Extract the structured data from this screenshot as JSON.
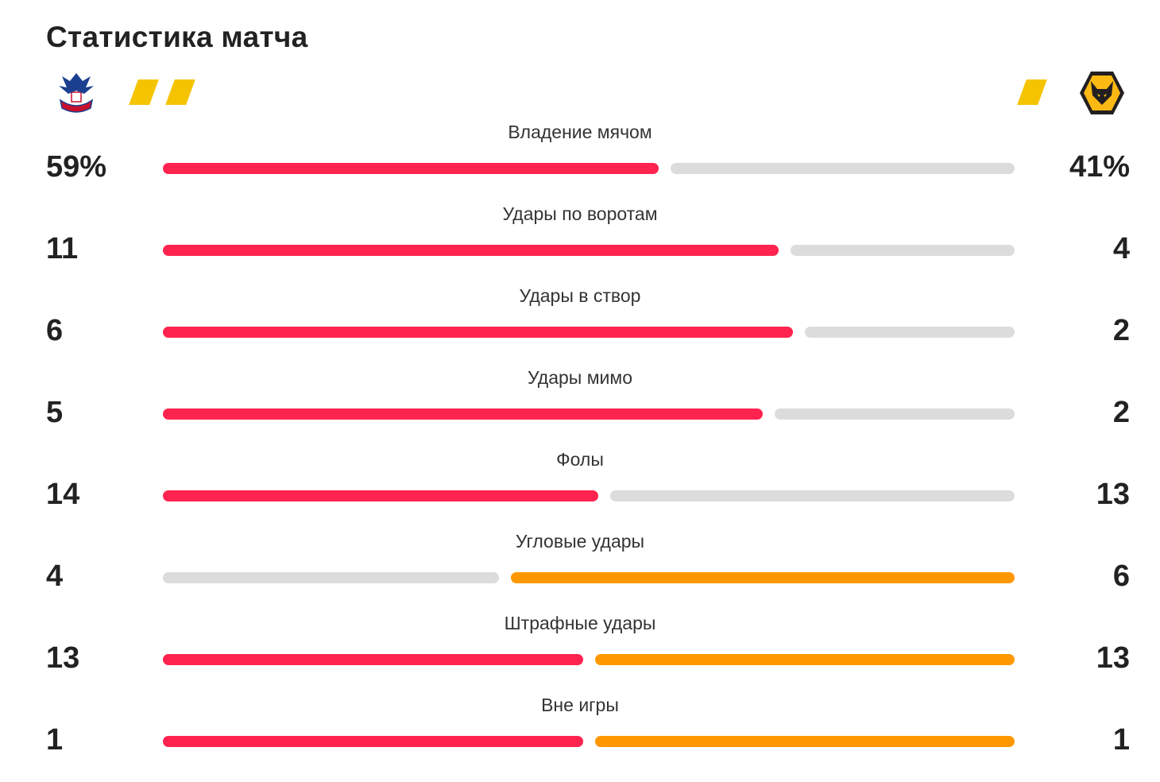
{
  "header": {
    "title": "Статистика матча"
  },
  "teams": {
    "home": {
      "crest_icon": "crystal-palace-crest-icon",
      "yellow_cards": 2
    },
    "away": {
      "crest_icon": "wolves-crest-icon",
      "yellow_cards": 1
    }
  },
  "colors": {
    "home_bar": "#ff2450",
    "away_bar": "#ff9800",
    "neutral_bar": "#dcdcdc",
    "yellow_card": "#f5c400"
  },
  "stats": [
    {
      "label": "Владение мячом",
      "home": "59%",
      "away": "41%",
      "home_value": 59,
      "away_value": 41,
      "home_active": true,
      "away_active": false
    },
    {
      "label": "Удары по воротам",
      "home": "11",
      "away": "4",
      "home_value": 11,
      "away_value": 4,
      "home_active": true,
      "away_active": false
    },
    {
      "label": "Удары в створ",
      "home": "6",
      "away": "2",
      "home_value": 6,
      "away_value": 2,
      "home_active": true,
      "away_active": false
    },
    {
      "label": "Удары мимо",
      "home": "5",
      "away": "2",
      "home_value": 5,
      "away_value": 2,
      "home_active": true,
      "away_active": false
    },
    {
      "label": "Фолы",
      "home": "14",
      "away": "13",
      "home_value": 14,
      "away_value": 13,
      "home_active": true,
      "away_active": false
    },
    {
      "label": "Угловые удары",
      "home": "4",
      "away": "6",
      "home_value": 4,
      "away_value": 6,
      "home_active": false,
      "away_active": true
    },
    {
      "label": "Штрафные удары",
      "home": "13",
      "away": "13",
      "home_value": 13,
      "away_value": 13,
      "home_active": true,
      "away_active": true
    },
    {
      "label": "Вне игры",
      "home": "1",
      "away": "1",
      "home_value": 1,
      "away_value": 1,
      "home_active": true,
      "away_active": true
    }
  ]
}
